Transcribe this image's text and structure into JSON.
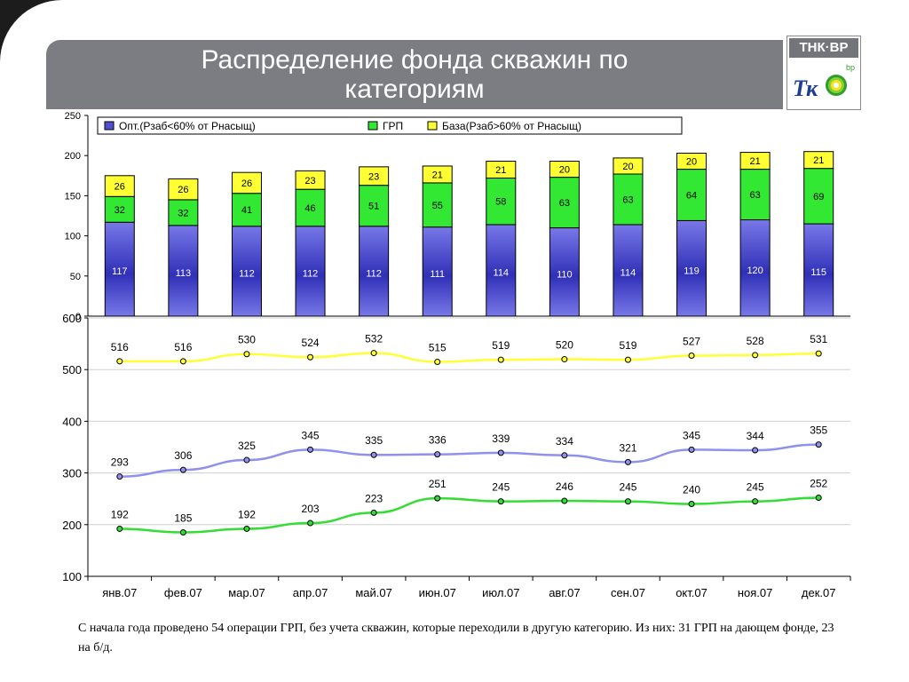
{
  "title": "Распределение фонда скважин по категориям",
  "logo": {
    "top_text": "ТНК·ВР",
    "tk_text": "Тк",
    "bp_text": "bp",
    "icon": "bp-helios-sun-icon"
  },
  "caption": "С начала года проведено 54 операции ГРП, без учета скважин, которые переходили в другую категорию. Из них: 31 ГРП на дающем фонде, 23 на б/д.",
  "colors": {
    "opt_top": "#7878e8",
    "opt_mid": "#3030b8",
    "grp": "#33e833",
    "baza": "#ffff33",
    "line_yellow": "#ffff33",
    "line_blue": "#9090ee",
    "line_green": "#33dd33"
  },
  "chart_data": [
    {
      "type": "bar",
      "stacked": true,
      "categories": [
        "янв.07",
        "фев.07",
        "мар.07",
        "апр.07",
        "май.07",
        "июн.07",
        "июл.07",
        "авг.07",
        "сен.07",
        "окт.07",
        "ноя.07",
        "дек.07"
      ],
      "series": [
        {
          "name": "Опт.(Рзаб<60% от Рнасыщ)",
          "values": [
            117,
            113,
            112,
            112,
            112,
            111,
            114,
            110,
            114,
            119,
            120,
            115
          ]
        },
        {
          "name": "ГРП",
          "values": [
            32,
            32,
            41,
            46,
            51,
            55,
            58,
            63,
            63,
            64,
            63,
            69
          ]
        },
        {
          "name": "База(Рзаб>60% от Рнасыщ)",
          "values": [
            26,
            26,
            26,
            23,
            23,
            21,
            21,
            20,
            20,
            20,
            21,
            21
          ]
        }
      ],
      "ylim": [
        0,
        250
      ],
      "yticks": [
        "0",
        "50",
        "100",
        "150",
        "200",
        "250"
      ],
      "legend": "top",
      "grid": false,
      "data_labels": true
    },
    {
      "type": "line",
      "categories": [
        "янв.07",
        "фев.07",
        "мар.07",
        "апр.07",
        "май.07",
        "июн.07",
        "июл.07",
        "авг.07",
        "сен.07",
        "окт.07",
        "ноя.07",
        "дек.07"
      ],
      "series": [
        {
          "values": [
            516,
            516,
            530,
            524,
            532,
            515,
            519,
            520,
            519,
            527,
            528,
            531
          ]
        },
        {
          "values": [
            293,
            306,
            325,
            345,
            335,
            336,
            339,
            334,
            321,
            345,
            344,
            355
          ]
        },
        {
          "values": [
            192,
            185,
            192,
            203,
            223,
            251,
            245,
            246,
            245,
            240,
            245,
            252
          ]
        }
      ],
      "ylim": [
        100,
        600
      ],
      "yticks": [
        "100",
        "200",
        "300",
        "400",
        "500",
        "600"
      ],
      "grid": true,
      "data_labels": true
    }
  ]
}
